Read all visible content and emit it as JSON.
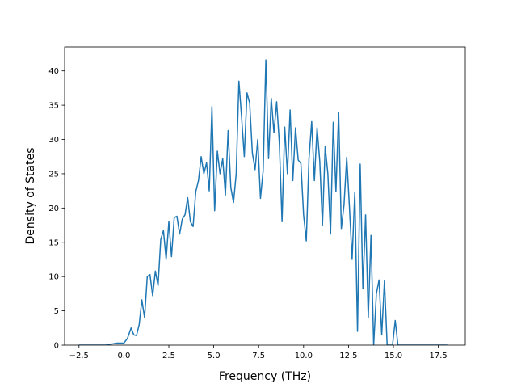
{
  "chart_data": {
    "type": "line",
    "xlabel": "Frequency (THz)",
    "ylabel": "Density of States",
    "xlim": [
      -3.3,
      19.0
    ],
    "ylim": [
      0,
      43.5
    ],
    "xticks": [
      -2.5,
      0.0,
      2.5,
      5.0,
      7.5,
      10.0,
      12.5,
      15.0,
      17.5
    ],
    "xtick_labels": [
      "−2.5",
      "0.0",
      "2.5",
      "5.0",
      "7.5",
      "10.0",
      "12.5",
      "15.0",
      "17.5"
    ],
    "yticks": [
      0,
      5,
      10,
      15,
      20,
      25,
      30,
      35,
      40
    ],
    "ytick_labels": [
      "0",
      "5",
      "10",
      "15",
      "20",
      "25",
      "30",
      "35",
      "40"
    ],
    "grid": false,
    "colors": {
      "line": "#1f77b4",
      "axes": "#000000",
      "background": "#ffffff"
    },
    "series": [
      {
        "x": [
          -2.5,
          -1.0,
          -0.6,
          -0.4,
          0.0,
          0.2,
          0.4,
          0.55,
          0.7,
          0.85,
          1.0,
          1.15,
          1.3,
          1.45,
          1.6,
          1.75,
          1.9,
          2.05,
          2.2,
          2.35,
          2.5,
          2.65,
          2.8,
          2.95,
          3.1,
          3.25,
          3.4,
          3.55,
          3.7,
          3.85,
          4.0,
          4.15,
          4.3,
          4.45,
          4.6,
          4.75,
          4.9,
          5.05,
          5.2,
          5.35,
          5.5,
          5.65,
          5.8,
          5.95,
          6.1,
          6.25,
          6.4,
          6.55,
          6.7,
          6.85,
          7.0,
          7.15,
          7.3,
          7.45,
          7.6,
          7.75,
          7.9,
          8.05,
          8.2,
          8.35,
          8.5,
          8.65,
          8.8,
          8.95,
          9.1,
          9.25,
          9.4,
          9.55,
          9.7,
          9.85,
          10.0,
          10.15,
          10.3,
          10.45,
          10.6,
          10.75,
          10.9,
          11.05,
          11.2,
          11.35,
          11.5,
          11.65,
          11.8,
          11.95,
          12.1,
          12.25,
          12.4,
          12.55,
          12.7,
          12.85,
          13.0,
          13.15,
          13.3,
          13.45,
          13.6,
          13.75,
          13.9,
          14.05,
          14.2,
          14.35,
          14.5,
          14.65,
          14.8,
          14.95,
          15.1,
          15.25,
          15.5,
          18.0
        ],
        "y": [
          0,
          0,
          0.2,
          0.3,
          0.3,
          1.0,
          2.5,
          1.5,
          1.4,
          3.0,
          6.6,
          4.0,
          10.0,
          10.3,
          7.2,
          10.8,
          8.7,
          15.4,
          16.7,
          12.5,
          18.0,
          12.9,
          18.6,
          18.8,
          16.2,
          18.4,
          19.0,
          21.5,
          18.0,
          17.3,
          22.4,
          24.0,
          27.5,
          25.0,
          26.6,
          22.5,
          34.8,
          19.6,
          28.3,
          25.0,
          27.2,
          21.9,
          31.3,
          23.0,
          20.8,
          25.0,
          38.5,
          33.2,
          27.5,
          36.8,
          35.3,
          28.0,
          25.6,
          30.0,
          21.4,
          25.5,
          41.6,
          27.2,
          36.0,
          31.0,
          35.5,
          29.5,
          18.0,
          31.8,
          25.0,
          34.3,
          24.0,
          31.7,
          27.0,
          26.5,
          19.0,
          15.2,
          27.2,
          32.6,
          24.0,
          31.7,
          26.8,
          17.5,
          29.0,
          25.0,
          16.2,
          32.5,
          22.4,
          34.0,
          17.0,
          20.5,
          27.4,
          20.2,
          12.5,
          22.3,
          2.0,
          26.4,
          8.2,
          19.0,
          4.0,
          16.0,
          0.0,
          7.5,
          9.5,
          1.5,
          9.4,
          0.0,
          0.0,
          0.0,
          3.6,
          0.0,
          0.0,
          0.0
        ]
      }
    ]
  }
}
